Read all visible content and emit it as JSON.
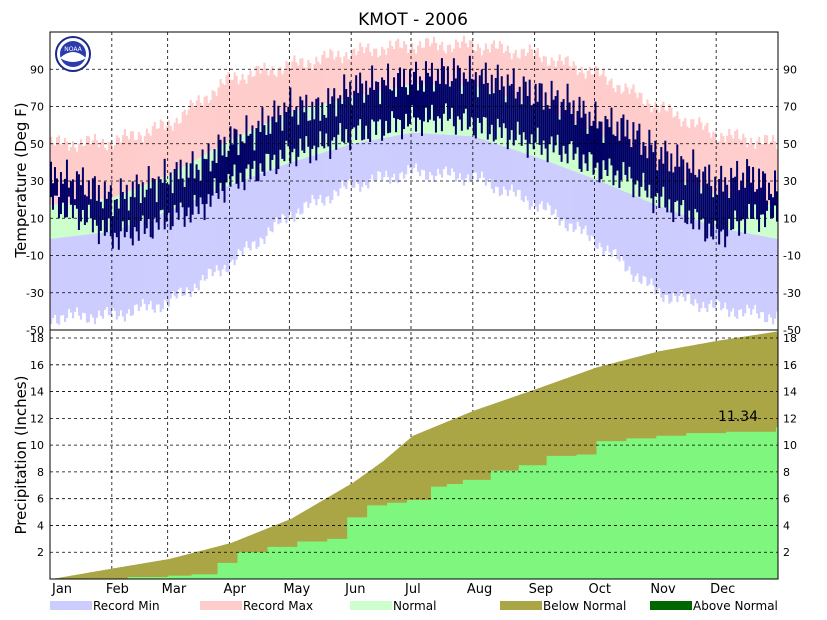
{
  "chart_data": [
    {
      "type": "bar",
      "title": "KMOT - 2006",
      "ylabel": "Temperature (Deg F)",
      "ylim": [
        -50,
        110
      ],
      "yticks": [
        -50,
        -30,
        -10,
        10,
        30,
        50,
        70,
        90
      ],
      "months": [
        "Jan",
        "Feb",
        "Mar",
        "Apr",
        "May",
        "Jun",
        "Jul",
        "Aug",
        "Sep",
        "Oct",
        "Nov",
        "Dec"
      ],
      "grid": true,
      "colors": {
        "record_min": "#ccccff",
        "record_max": "#ffcccc",
        "normal": "#ccffcc",
        "observed": "#000066"
      },
      "envelopes": {
        "doy": [
          1,
          32,
          60,
          91,
          121,
          152,
          182,
          213,
          244,
          274,
          305,
          335,
          365
        ],
        "record_max": [
          50,
          51,
          60,
          85,
          92,
          99,
          103,
          103,
          98,
          88,
          70,
          55,
          50
        ],
        "normal_high": [
          17,
          21,
          33,
          52,
          67,
          75,
          82,
          81,
          70,
          56,
          36,
          22,
          17
        ],
        "normal_low": [
          -1,
          3,
          14,
          28,
          40,
          50,
          56,
          54,
          43,
          31,
          17,
          5,
          -1
        ],
        "record_min": [
          -43,
          -42,
          -35,
          -14,
          12,
          28,
          35,
          32,
          18,
          -2,
          -30,
          -38,
          -43
        ]
      },
      "observed": {
        "doy": [
          1,
          15,
          32,
          50,
          60,
          75,
          91,
          100,
          121,
          135,
          152,
          165,
          182,
          200,
          213,
          230,
          244,
          260,
          274,
          290,
          305,
          320,
          335,
          350,
          365
        ],
        "high": [
          32,
          30,
          20,
          28,
          32,
          38,
          52,
          55,
          70,
          68,
          80,
          82,
          85,
          88,
          86,
          82,
          77,
          72,
          62,
          58,
          45,
          38,
          28,
          34,
          25
        ],
        "low": [
          18,
          12,
          0,
          5,
          10,
          15,
          30,
          33,
          45,
          48,
          55,
          58,
          62,
          64,
          60,
          55,
          50,
          46,
          37,
          32,
          20,
          12,
          0,
          10,
          12
        ]
      }
    },
    {
      "type": "area",
      "ylabel": "Precipitation (Inches)",
      "ylim": [
        0,
        18.6
      ],
      "yticks": [
        2,
        4,
        6,
        8,
        10,
        12,
        14,
        16,
        18
      ],
      "months": [
        "Jan",
        "Feb",
        "Mar",
        "Apr",
        "May",
        "Jun",
        "Jul",
        "Aug",
        "Sep",
        "Oct",
        "Nov",
        "Dec"
      ],
      "grid": true,
      "annotation": "11.34",
      "colors": {
        "below_normal": "#aaa646",
        "above_normal": "#006600",
        "observed_fill": "#7ff77f"
      },
      "normal_cumulative": {
        "doy": [
          1,
          32,
          60,
          91,
          121,
          152,
          167,
          182,
          213,
          244,
          274,
          305,
          335,
          365
        ],
        "values": [
          0,
          0.8,
          1.5,
          2.7,
          4.5,
          7.2,
          8.8,
          10.7,
          12.6,
          14.2,
          15.8,
          17.0,
          17.8,
          18.5
        ]
      },
      "observed_cumulative": {
        "doy": [
          1,
          20,
          40,
          60,
          72,
          85,
          95,
          110,
          125,
          140,
          150,
          160,
          170,
          180,
          192,
          200,
          208,
          222,
          236,
          250,
          265,
          275,
          290,
          305,
          320,
          340,
          365
        ],
        "values": [
          0,
          0.05,
          0.15,
          0.25,
          0.35,
          1.2,
          2.0,
          2.4,
          2.8,
          3.0,
          4.6,
          5.5,
          5.7,
          5.9,
          6.9,
          7.1,
          7.4,
          8.1,
          8.5,
          9.2,
          9.3,
          10.3,
          10.5,
          10.7,
          10.9,
          11.0,
          11.34
        ]
      }
    }
  ],
  "legend": [
    {
      "label": "Record Min",
      "color": "#ccccff"
    },
    {
      "label": "Record Max",
      "color": "#ffcccc"
    },
    {
      "label": "Normal",
      "color": "#ccffcc"
    },
    {
      "label": "Below Normal",
      "color": "#aaa646"
    },
    {
      "label": "Above Normal",
      "color": "#006600"
    }
  ]
}
